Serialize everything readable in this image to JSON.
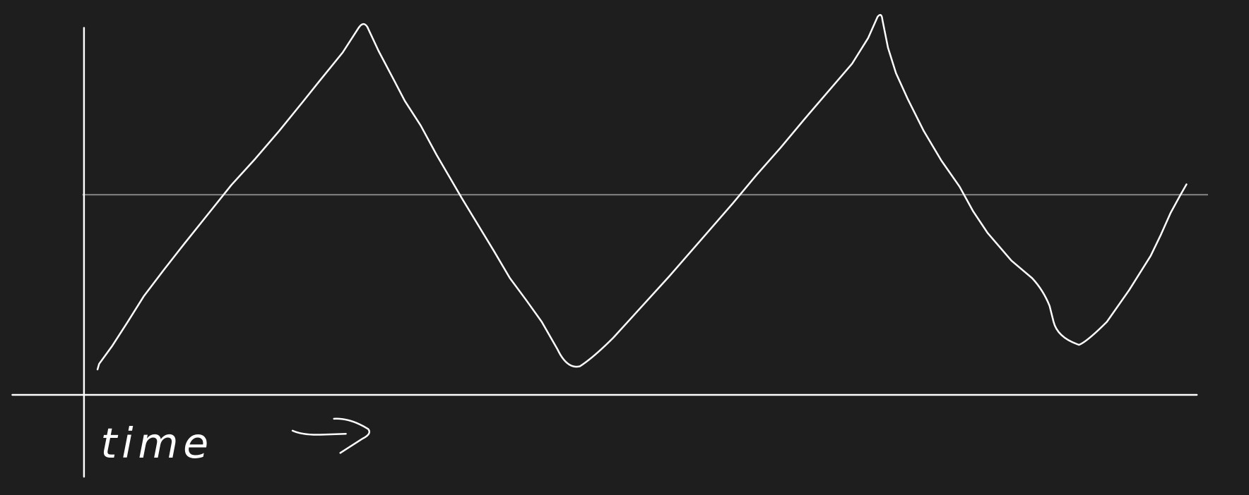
{
  "axis_label": "time"
}
